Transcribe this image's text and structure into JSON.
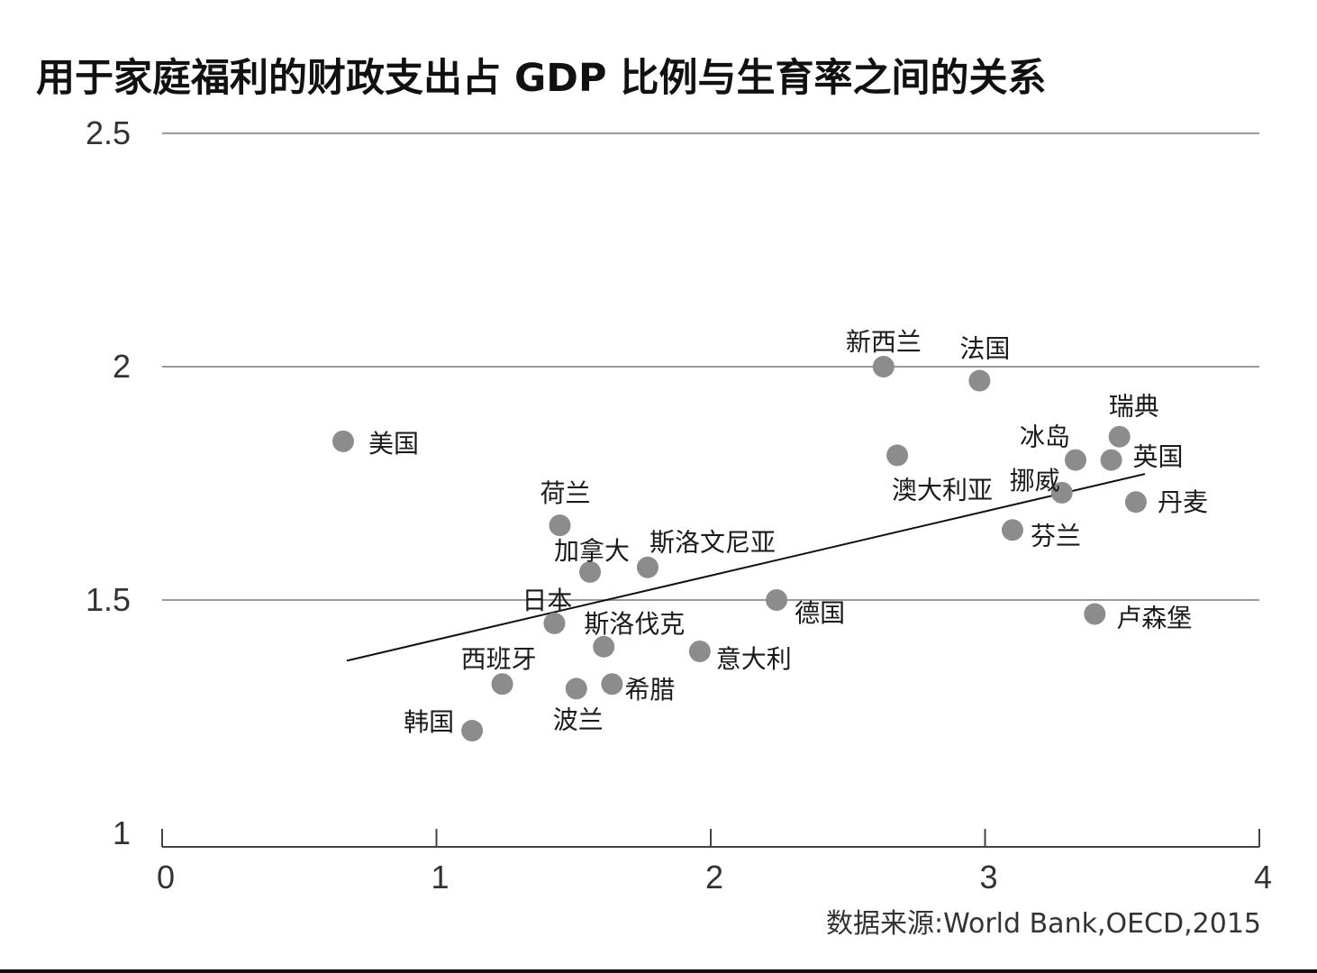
{
  "chart_data": {
    "type": "scatter",
    "title": "用于家庭福利的财政支出占 GDP 比例与生育率之间的关系",
    "xlim": [
      0,
      4
    ],
    "ylim": [
      1,
      2.5
    ],
    "xticks": [
      "0",
      "1",
      "2",
      "3",
      "4"
    ],
    "yticks": [
      "1",
      "1.5",
      "2",
      "2.5"
    ],
    "grid": "horizontal",
    "marker_color": "#8c8c8c",
    "points": [
      {
        "label": "美国",
        "x": 0.66,
        "y": 1.84
      },
      {
        "label": "新西兰",
        "x": 2.63,
        "y": 2.0
      },
      {
        "label": "法国",
        "x": 2.98,
        "y": 1.97
      },
      {
        "label": "瑞典",
        "x": 3.49,
        "y": 1.85
      },
      {
        "label": "冰岛",
        "x": 3.33,
        "y": 1.8
      },
      {
        "label": "英国",
        "x": 3.46,
        "y": 1.8
      },
      {
        "label": "澳大利亚",
        "x": 2.68,
        "y": 1.81
      },
      {
        "label": "挪威",
        "x": 3.28,
        "y": 1.73
      },
      {
        "label": "丹麦",
        "x": 3.55,
        "y": 1.71
      },
      {
        "label": "芬兰",
        "x": 3.1,
        "y": 1.65
      },
      {
        "label": "荷兰",
        "x": 1.45,
        "y": 1.66
      },
      {
        "label": "加拿大",
        "x": 1.56,
        "y": 1.56
      },
      {
        "label": "斯洛文尼亚",
        "x": 1.77,
        "y": 1.57
      },
      {
        "label": "日本",
        "x": 1.43,
        "y": 1.45
      },
      {
        "label": "德国",
        "x": 2.24,
        "y": 1.5
      },
      {
        "label": "卢森堡",
        "x": 3.4,
        "y": 1.47
      },
      {
        "label": "斯洛伐克",
        "x": 1.61,
        "y": 1.4
      },
      {
        "label": "意大利",
        "x": 1.96,
        "y": 1.39
      },
      {
        "label": "西班牙",
        "x": 1.24,
        "y": 1.32
      },
      {
        "label": "希腊",
        "x": 1.64,
        "y": 1.32
      },
      {
        "label": "波兰",
        "x": 1.51,
        "y": 1.31
      },
      {
        "label": "韩国",
        "x": 1.13,
        "y": 1.22
      }
    ],
    "trendline": {
      "x": [
        0.66,
        3.55
      ],
      "y": [
        1.37,
        1.77
      ]
    },
    "source": "数据来源:World  Bank,OECD,2015"
  }
}
